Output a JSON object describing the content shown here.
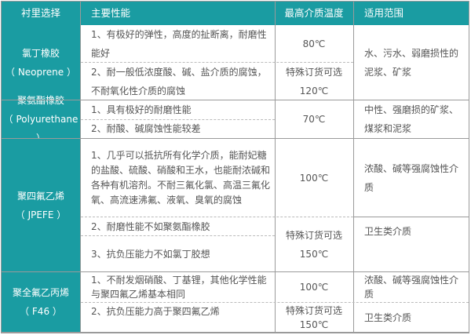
{
  "header": {
    "col1": "衬里选择",
    "col2": "主要性能",
    "col3": "最高介质温度",
    "col4": "适用范围"
  },
  "rows": [
    {
      "name": "氯丁橡胶",
      "code": "（ Neoprene ）",
      "p1": "1、有极好的弹性，高度的扯断离，耐磨性能好",
      "p2": "2、耐一般低浓度酸、碱、盐介质的腐蚀，不耐氧化性介质的腐蚀",
      "t1": "80℃",
      "t2a": "特殊订货可选",
      "t2b": "120℃",
      "use": "水、污水、弱磨损性的泥浆、矿浆"
    },
    {
      "name": "聚氨酯橡胶",
      "code": "（ Polyurethane ）",
      "p1": "1、具有极好的耐磨性能",
      "p2": "2、耐酸、碱腐蚀性能较差",
      "t1": "70℃",
      "use": "中性、强磨损的矿浆、煤浆和泥浆"
    },
    {
      "name": "聚四氟乙烯",
      "code": "（ JPEFE ）",
      "p1": "1、几乎可以抵抗所有化学介质，能耐妃糖的盐酸、硫酸、硝酸和王水，也能耐浓碱和各种有机溶剂。不耐三氟化氯、高温三氟化氧、高流速沸氟、液氧、臭氧的腐蚀",
      "p2": "2、耐磨性能不如聚氨酯橡胶",
      "p3": "3、抗负压能力不如氯丁胶想",
      "t1": "100℃",
      "t2a": "特殊订货可选",
      "t2b": "150℃",
      "use1": "浓酸、碱等强腐蚀性介质",
      "use2": "卫生类介质"
    },
    {
      "name": "聚全氟乙丙烯",
      "code": "（ F46 ）",
      "p1": "1、不耐发烟硝酸、丁基锂，其他化学性能与聚四氟乙烯基本相同",
      "p2": "2、抗负压能力高于聚四氟乙烯",
      "t1": "100℃",
      "t2a": "特殊订货可选",
      "t2b": "150℃",
      "use1": "浓酸、碱等强腐蚀性介质",
      "use2": "卫生类介质"
    }
  ],
  "colors": {
    "header": "#1a9ca2",
    "text": "#555555"
  }
}
